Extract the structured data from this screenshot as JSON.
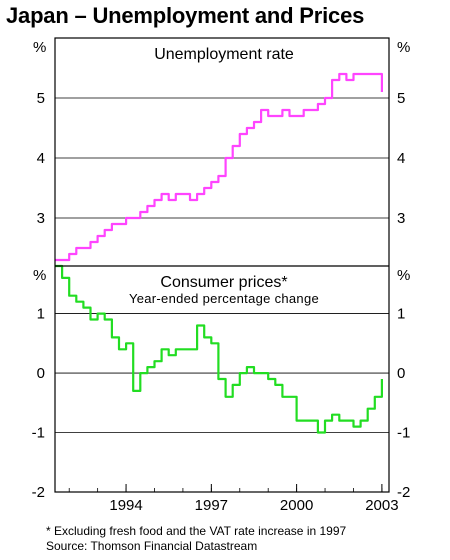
{
  "title": "Japan – Unemployment and Prices",
  "footnotes": [
    "* Excluding fresh food and the VAT rate increase in 1997",
    "Source:  Thomson Financial Datastream"
  ],
  "chart_data": [
    {
      "type": "line",
      "title": "Unemployment rate",
      "subtitle": "",
      "unit_label": "%",
      "ylim": [
        2.2,
        6.0
      ],
      "yticks": [
        3,
        4,
        5
      ],
      "xlim": [
        1992.0,
        2003.75
      ],
      "grid": true,
      "color": "#ff44ff",
      "series": [
        {
          "x": [
            1992.0,
            1992.25,
            1992.5,
            1992.75,
            1993.0,
            1993.25,
            1993.5,
            1993.75,
            1994.0,
            1994.25,
            1994.5,
            1994.75,
            1995.0,
            1995.25,
            1995.5,
            1995.75,
            1996.0,
            1996.25,
            1996.5,
            1996.75,
            1997.0,
            1997.25,
            1997.5,
            1997.75,
            1998.0,
            1998.25,
            1998.5,
            1998.75,
            1999.0,
            1999.25,
            1999.5,
            1999.75,
            2000.0,
            2000.25,
            2000.5,
            2000.75,
            2001.0,
            2001.25,
            2001.5,
            2001.75,
            2002.0,
            2002.25,
            2002.5,
            2002.75,
            2003.0,
            2003.25,
            2003.5
          ],
          "y": [
            2.3,
            2.3,
            2.4,
            2.5,
            2.5,
            2.6,
            2.7,
            2.8,
            2.9,
            2.9,
            3.0,
            3.0,
            3.1,
            3.2,
            3.3,
            3.4,
            3.3,
            3.4,
            3.4,
            3.3,
            3.4,
            3.5,
            3.6,
            3.7,
            4.0,
            4.2,
            4.4,
            4.5,
            4.6,
            4.8,
            4.7,
            4.7,
            4.8,
            4.7,
            4.7,
            4.8,
            4.8,
            4.9,
            5.0,
            5.3,
            5.4,
            5.3,
            5.4,
            5.4,
            5.4,
            5.4,
            5.1
          ]
        }
      ]
    },
    {
      "type": "line",
      "title": "Consumer prices*",
      "subtitle": "Year-ended percentage change",
      "unit_label": "%",
      "ylim": [
        -2.0,
        1.8
      ],
      "yticks": [
        -2,
        -1,
        0,
        1
      ],
      "xlim": [
        1992.0,
        2003.75
      ],
      "x_tick_labels": [
        "1994",
        "1997",
        "2000",
        "2003"
      ],
      "x_tick_positions": [
        1994.5,
        1997.5,
        2000.5,
        2003.5
      ],
      "grid": true,
      "color": "#22dd22",
      "series": [
        {
          "x": [
            1992.0,
            1992.25,
            1992.5,
            1992.75,
            1993.0,
            1993.25,
            1993.5,
            1993.75,
            1994.0,
            1994.25,
            1994.5,
            1994.75,
            1995.0,
            1995.25,
            1995.5,
            1995.75,
            1996.0,
            1996.25,
            1996.5,
            1996.75,
            1997.0,
            1997.25,
            1997.5,
            1997.75,
            1998.0,
            1998.25,
            1998.5,
            1998.75,
            1999.0,
            1999.25,
            1999.5,
            1999.75,
            2000.0,
            2000.25,
            2000.5,
            2000.75,
            2001.0,
            2001.25,
            2001.5,
            2001.75,
            2002.0,
            2002.25,
            2002.5,
            2002.75,
            2003.0,
            2003.25,
            2003.5
          ],
          "y": [
            1.8,
            1.6,
            1.3,
            1.2,
            1.1,
            0.9,
            1.0,
            0.9,
            0.6,
            0.4,
            0.5,
            -0.3,
            0.0,
            0.1,
            0.2,
            0.4,
            0.3,
            0.4,
            0.4,
            0.4,
            0.8,
            0.6,
            0.5,
            -0.1,
            -0.4,
            -0.2,
            0.0,
            0.1,
            0.0,
            0.0,
            -0.1,
            -0.2,
            -0.4,
            -0.4,
            -0.8,
            -0.8,
            -0.8,
            -1.0,
            -0.8,
            -0.7,
            -0.8,
            -0.8,
            -0.9,
            -0.8,
            -0.6,
            -0.4,
            -0.1
          ]
        }
      ]
    }
  ]
}
